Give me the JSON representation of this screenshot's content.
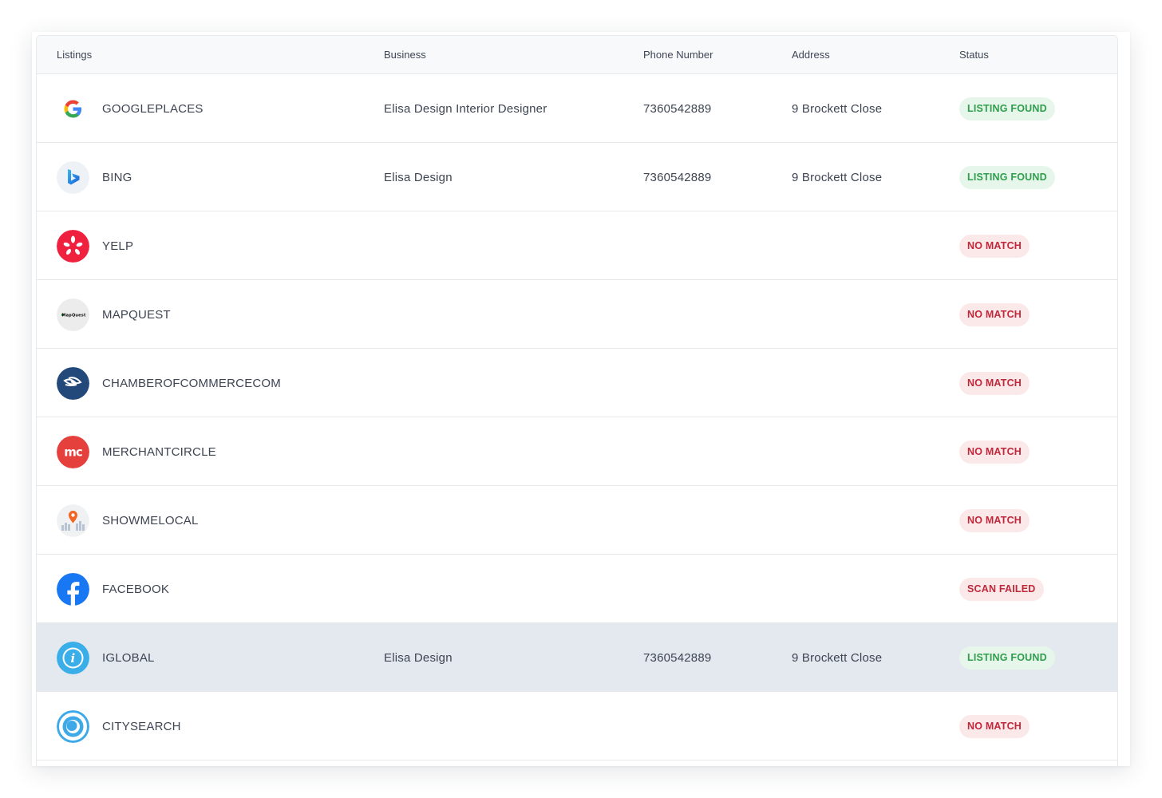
{
  "columns": {
    "listings": "Listings",
    "business": "Business",
    "phone": "Phone Number",
    "address": "Address",
    "status": "Status"
  },
  "colors": {
    "found_bg": "#e6f6ea",
    "found_text": "#2f9e4c",
    "nomatch_bg": "#fbe9ea",
    "nomatch_text": "#c0283a",
    "hover_row": "#e4e8ef"
  },
  "rows": [
    {
      "icon": "google-icon",
      "listing": "GOOGLEPLACES",
      "business": "Elisa Design Interior Designer",
      "phone": "7360542889",
      "address": "9 Brockett Close",
      "status": "LISTING FOUND",
      "status_kind": "found"
    },
    {
      "icon": "bing-icon",
      "listing": "BING",
      "business": "Elisa Design",
      "phone": "7360542889",
      "address": "9 Brockett Close",
      "status": "LISTING FOUND",
      "status_kind": "found"
    },
    {
      "icon": "yelp-icon",
      "listing": "YELP",
      "business": "",
      "phone": "",
      "address": "",
      "status": "NO MATCH",
      "status_kind": "nomatch"
    },
    {
      "icon": "mapquest-icon",
      "listing": "MAPQUEST",
      "business": "",
      "phone": "",
      "address": "",
      "status": "NO MATCH",
      "status_kind": "nomatch"
    },
    {
      "icon": "chamberofcommerce-icon",
      "listing": "CHAMBEROFCOMMERCECOM",
      "business": "",
      "phone": "",
      "address": "",
      "status": "NO MATCH",
      "status_kind": "nomatch"
    },
    {
      "icon": "merchantcircle-icon",
      "listing": "MERCHANTCIRCLE",
      "business": "",
      "phone": "",
      "address": "",
      "status": "NO MATCH",
      "status_kind": "nomatch"
    },
    {
      "icon": "showmelocal-icon",
      "listing": "SHOWMELOCAL",
      "business": "",
      "phone": "",
      "address": "",
      "status": "NO MATCH",
      "status_kind": "nomatch"
    },
    {
      "icon": "facebook-icon",
      "listing": "FACEBOOK",
      "business": "",
      "phone": "",
      "address": "",
      "status": "SCAN FAILED",
      "status_kind": "nomatch"
    },
    {
      "icon": "iglobal-icon",
      "listing": "IGLOBAL",
      "business": "Elisa Design",
      "phone": "7360542889",
      "address": "9 Brockett Close",
      "status": "LISTING FOUND",
      "status_kind": "found",
      "highlighted": true
    },
    {
      "icon": "citysearch-icon",
      "listing": "CITYSEARCH",
      "business": "",
      "phone": "",
      "address": "",
      "status": "NO MATCH",
      "status_kind": "nomatch"
    }
  ],
  "mapquest_logo_text": "MapQuest"
}
